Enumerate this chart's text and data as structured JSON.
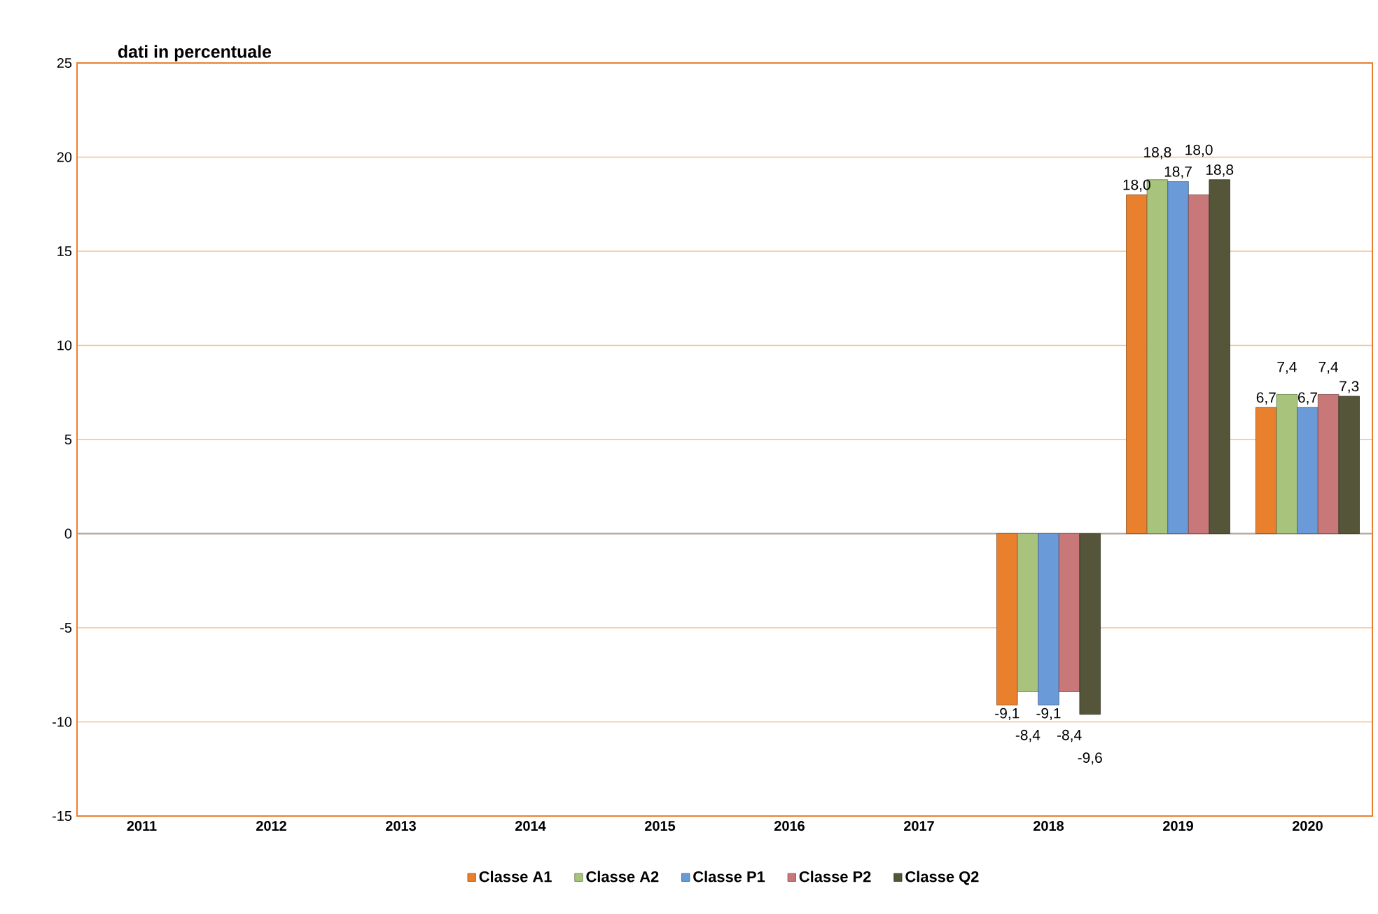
{
  "chart_data": {
    "type": "bar",
    "title": "dati in percentuale",
    "categories": [
      "2011",
      "2012",
      "2013",
      "2014",
      "2015",
      "2016",
      "2017",
      "2018",
      "2019",
      "2020"
    ],
    "series": [
      {
        "name": "Classe A1",
        "color": "#e8802e",
        "values": [
          null,
          null,
          null,
          null,
          null,
          null,
          null,
          -9.1,
          18.0,
          6.7
        ],
        "value_labels": [
          null,
          null,
          null,
          null,
          null,
          null,
          null,
          "-9,1",
          "18,0",
          "6,7"
        ]
      },
      {
        "name": "Classe A2",
        "color": "#a8c47c",
        "values": [
          null,
          null,
          null,
          null,
          null,
          null,
          null,
          -8.4,
          18.8,
          7.4
        ],
        "value_labels": [
          null,
          null,
          null,
          null,
          null,
          null,
          null,
          "-8,4",
          "18,8",
          "7,4"
        ]
      },
      {
        "name": "Classe P1",
        "color": "#6a9ad8",
        "values": [
          null,
          null,
          null,
          null,
          null,
          null,
          null,
          -9.1,
          18.7,
          6.7
        ],
        "value_labels": [
          null,
          null,
          null,
          null,
          null,
          null,
          null,
          "-9,1",
          "18,7",
          "6,7"
        ]
      },
      {
        "name": "Classe P2",
        "color": "#c87878",
        "values": [
          null,
          null,
          null,
          null,
          null,
          null,
          null,
          -8.4,
          18.0,
          7.4
        ],
        "value_labels": [
          null,
          null,
          null,
          null,
          null,
          null,
          null,
          "-8,4",
          "18,0",
          "7,4"
        ]
      },
      {
        "name": "Classe Q2",
        "color": "#55553a",
        "values": [
          null,
          null,
          null,
          null,
          null,
          null,
          null,
          -9.6,
          18.8,
          7.3
        ],
        "value_labels": [
          null,
          null,
          null,
          null,
          null,
          null,
          null,
          "-9,6",
          "18,8",
          "7,3"
        ]
      }
    ],
    "ylim": [
      -15,
      25
    ],
    "yticks": [
      -15,
      -10,
      -5,
      0,
      5,
      10,
      15,
      20,
      25
    ],
    "grid": "y",
    "legend": "bottom"
  }
}
